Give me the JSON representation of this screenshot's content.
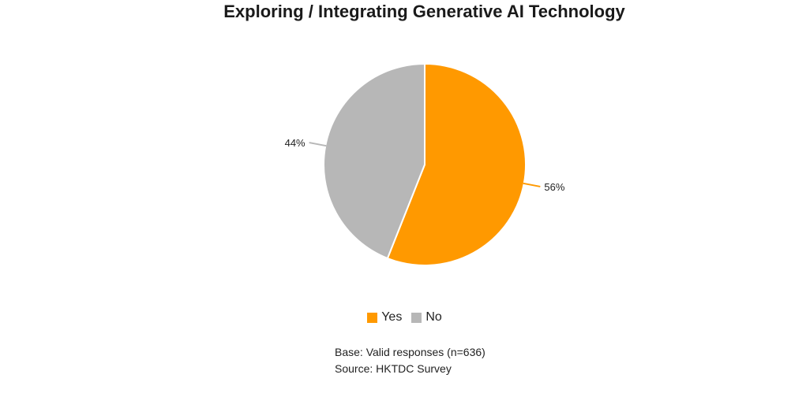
{
  "chart_data": {
    "type": "pie",
    "title": "Exploring / Integrating Generative AI Technology",
    "slices": [
      {
        "label": "Yes",
        "value": 56,
        "display": "56%",
        "color": "#FF9900"
      },
      {
        "label": "No",
        "value": 44,
        "display": "44%",
        "color": "#B7B7B7"
      }
    ],
    "legend_position": "bottom",
    "start_angle": "12 o'clock, clockwise",
    "notes": [
      "Base: Valid responses (n=636)",
      "Source: HKTDC Survey"
    ]
  }
}
